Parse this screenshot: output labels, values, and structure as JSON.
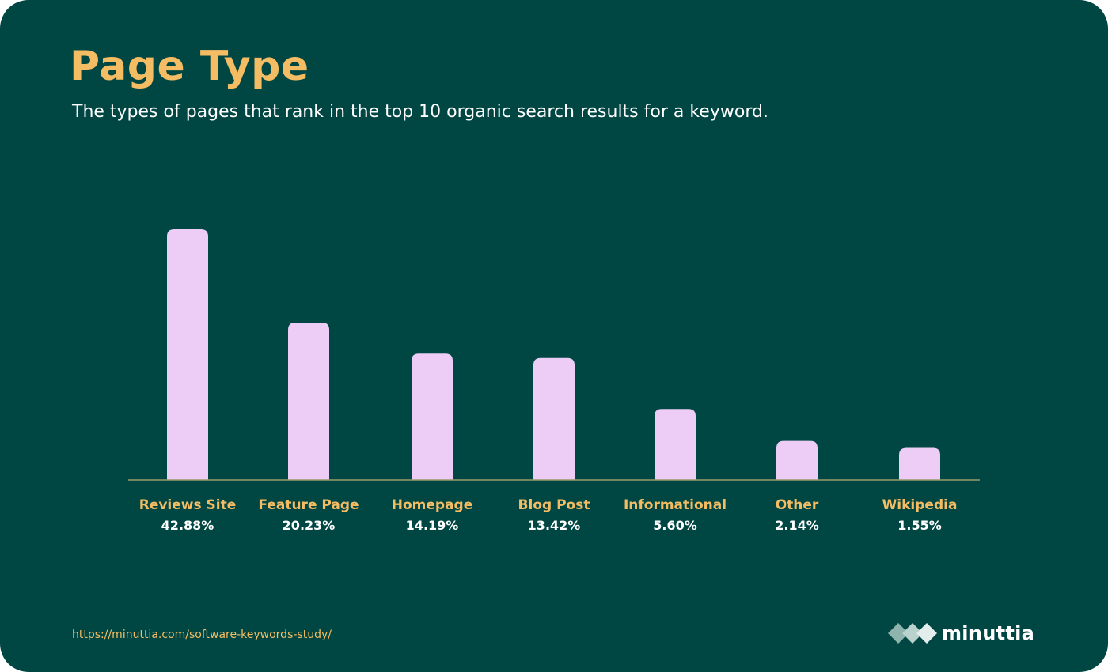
{
  "header": {
    "title": "Page Type",
    "subtitle": "The types of pages that rank in the top 10 organic search results for a keyword."
  },
  "footer": {
    "source_url": "https://minuttia.com/software-keywords-study/",
    "brand_name": "minuttia",
    "brand_logo_icon": "diamond-chain-logo-icon"
  },
  "colors": {
    "background": "#004643",
    "accent": "#f5bd63",
    "bar": "#edcdf5",
    "axis": "#9a9a6a",
    "text_light": "#ffffff"
  },
  "chart_data": {
    "type": "bar",
    "categories": [
      "Reviews Site",
      "Feature Page",
      "Homepage",
      "Blog Post",
      "Informational",
      "Other",
      "Wikipedia"
    ],
    "values": [
      42.88,
      20.23,
      14.19,
      13.42,
      5.6,
      2.14,
      1.55
    ],
    "value_labels": [
      "42.88%",
      "20.23%",
      "14.19%",
      "13.42%",
      "5.60%",
      "2.14%",
      "1.55%"
    ],
    "unit": "%",
    "title": "Page Type",
    "xlabel": "",
    "ylabel": "",
    "grid": false,
    "legend": "none"
  }
}
